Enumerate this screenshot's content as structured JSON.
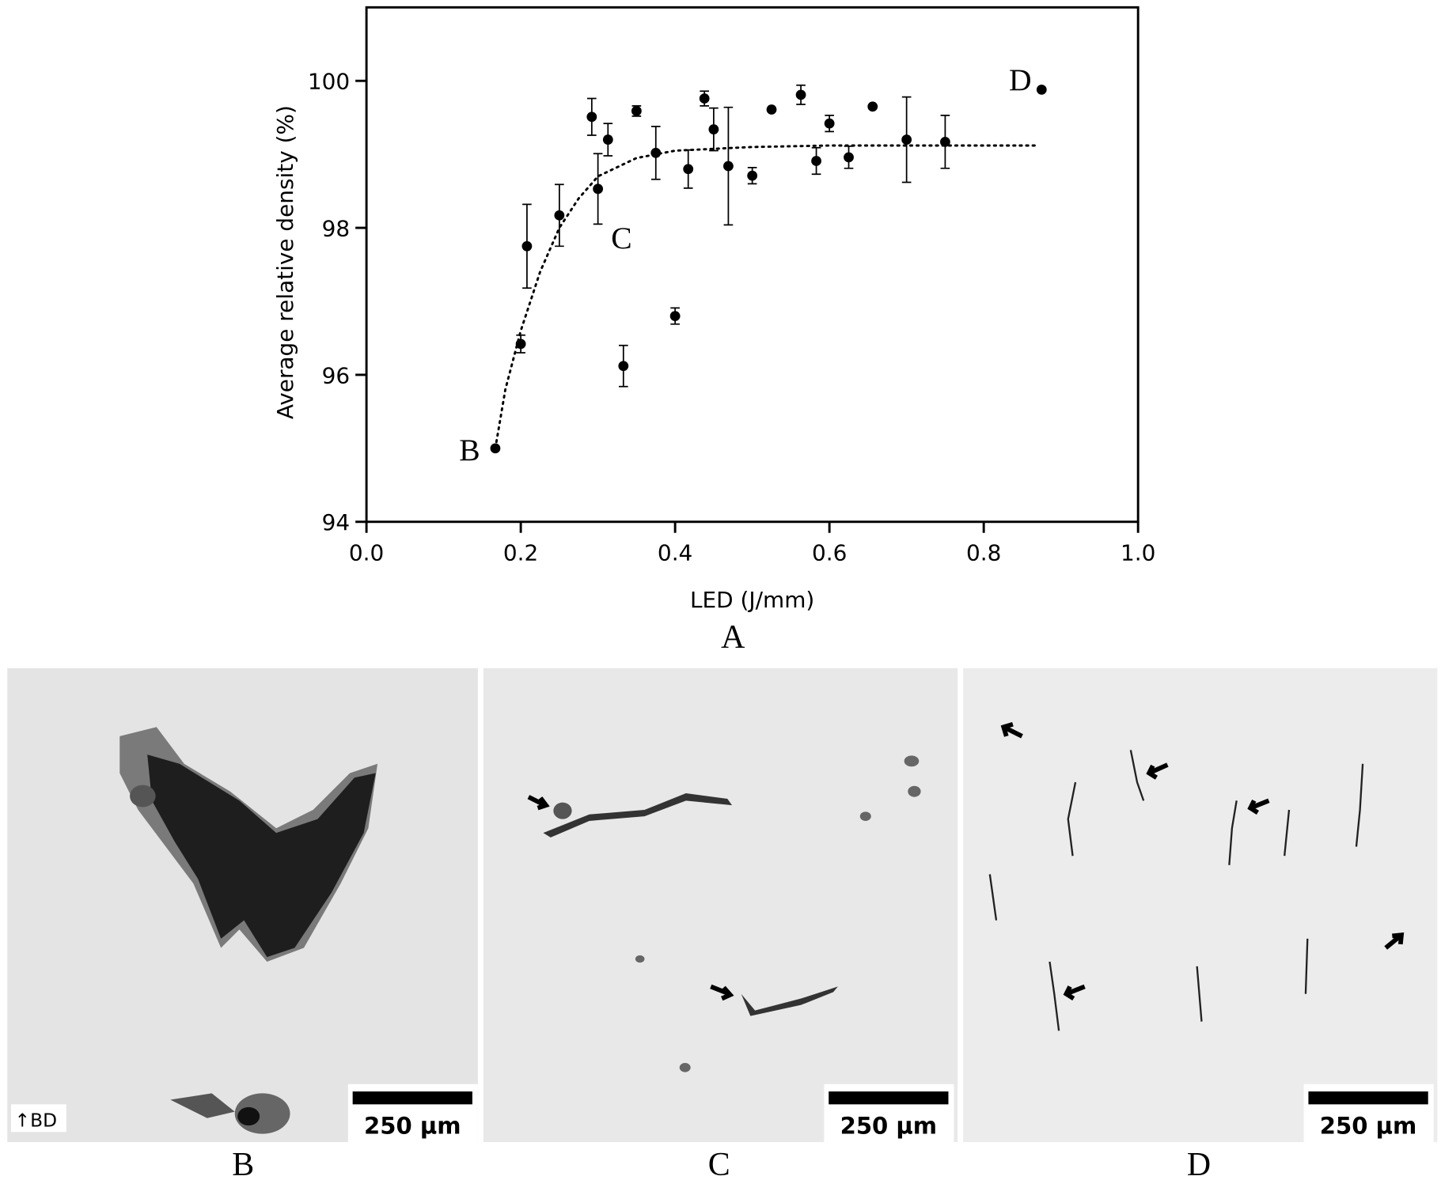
{
  "chart_data": {
    "type": "scatter",
    "xlabel": "LED (J/mm)",
    "ylabel": "Average relative density (%)",
    "xlim": [
      0,
      1
    ],
    "ylim": [
      94,
      101
    ],
    "xticks": [
      {
        "value": 0,
        "label": "0.0"
      },
      {
        "value": 0.2,
        "label": "0.2"
      },
      {
        "value": 0.4,
        "label": "0.4"
      },
      {
        "value": 0.6,
        "label": "0.6"
      },
      {
        "value": 0.8,
        "label": "0.8"
      },
      {
        "value": 1,
        "label": "1.0"
      }
    ],
    "yticks": [
      94,
      96,
      98,
      100
    ],
    "color": "#000000",
    "x": [
      0.167,
      0.2,
      0.208,
      0.25,
      0.292,
      0.3,
      0.313,
      0.333,
      0.35,
      0.375,
      0.4,
      0.417,
      0.438,
      0.45,
      0.469,
      0.5,
      0.525,
      0.563,
      0.583,
      0.6,
      0.625,
      0.656,
      0.7,
      0.75,
      0.875
    ],
    "values": [
      95.0,
      96.42,
      97.75,
      98.17,
      99.51,
      98.53,
      99.2,
      96.12,
      99.59,
      99.02,
      96.8,
      98.8,
      99.76,
      99.34,
      98.84,
      98.71,
      99.61,
      99.81,
      98.91,
      99.42,
      98.96,
      99.65,
      99.2,
      99.17,
      99.88
    ],
    "errors": [
      null,
      0.12,
      0.57,
      0.42,
      0.25,
      0.48,
      0.22,
      0.28,
      0.07,
      0.36,
      0.11,
      0.26,
      0.1,
      0.29,
      0.8,
      0.11,
      null,
      0.13,
      0.18,
      0.11,
      0.15,
      null,
      0.58,
      0.36,
      null
    ],
    "fit": {
      "style": "dotted",
      "x": [
        0.167,
        0.18,
        0.2,
        0.225,
        0.25,
        0.275,
        0.3,
        0.35,
        0.4,
        0.5,
        0.6,
        0.868
      ],
      "values": [
        95.0,
        95.8,
        96.6,
        97.4,
        98.0,
        98.4,
        98.7,
        98.95,
        99.05,
        99.1,
        99.12,
        99.12
      ]
    },
    "annotations": [
      "B",
      "C",
      "D"
    ],
    "panel_label": "A"
  },
  "panels": [
    {
      "label": "B",
      "scale_bar": "250 µm",
      "orientation": "↑BD"
    },
    {
      "label": "C",
      "scale_bar": "250 µm"
    },
    {
      "label": "D",
      "scale_bar": "250 µm"
    }
  ]
}
